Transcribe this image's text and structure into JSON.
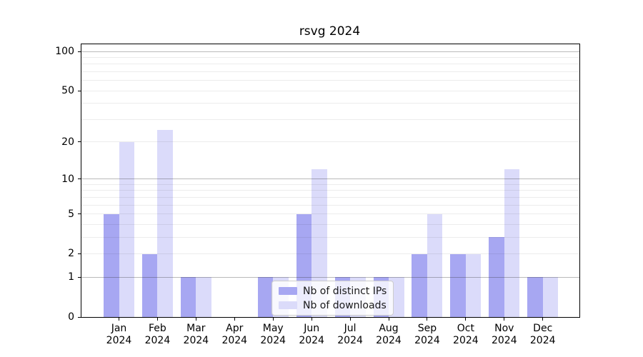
{
  "title": "rsvg 2024",
  "chart_data": {
    "type": "bar",
    "title": "rsvg 2024",
    "categories": [
      "Jan",
      "Feb",
      "Mar",
      "Apr",
      "May",
      "Jun",
      "Jul",
      "Aug",
      "Sep",
      "Oct",
      "Nov",
      "Dec"
    ],
    "x_year_label": "2024",
    "series": [
      {
        "name": "Nb of distinct IPs",
        "color": "#a7a7f2",
        "values": [
          5,
          2,
          1,
          0,
          1,
          5,
          1,
          1,
          2,
          2,
          3,
          1
        ]
      },
      {
        "name": "Nb of downloads",
        "color": "#dbdbfa",
        "values": [
          20,
          25,
          1,
          0,
          1,
          12,
          1,
          1,
          5,
          2,
          12,
          1
        ]
      }
    ],
    "yscale": "log10(1+x)",
    "ylim": [
      0,
      115
    ],
    "xlabel": "",
    "ylabel": "",
    "y_tick_labels": [
      0,
      1,
      2,
      5,
      10,
      20,
      50,
      100
    ],
    "y_major_gridlines": [
      1,
      10,
      100
    ],
    "y_minor_gridlines": [
      2,
      3,
      4,
      5,
      6,
      7,
      8,
      9,
      20,
      30,
      40,
      50,
      60,
      70,
      80,
      90
    ],
    "grid": "on",
    "legend_position": "lower center, inside axes"
  }
}
